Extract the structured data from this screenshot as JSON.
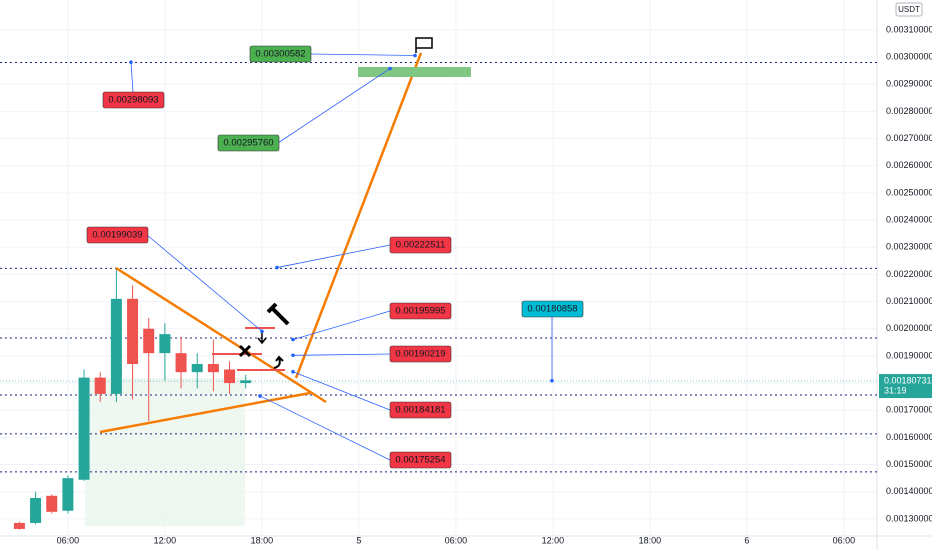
{
  "chart_data": {
    "type": "candlestick",
    "currency": "USDT",
    "xlim": [
      1.8,
      56.05
    ],
    "ylim": [
      0.001237,
      0.00321
    ],
    "xticks": [
      {
        "value": 6,
        "label": "06:00"
      },
      {
        "value": 12,
        "label": "12:00"
      },
      {
        "value": 18,
        "label": "18:00"
      },
      {
        "value": 24,
        "label": "5"
      },
      {
        "value": 30,
        "label": "06:00"
      },
      {
        "value": 36,
        "label": "12:00"
      },
      {
        "value": 42,
        "label": "18:00"
      },
      {
        "value": 48,
        "label": "6"
      },
      {
        "value": 54,
        "label": "06:00"
      }
    ],
    "yticks": [
      {
        "value": 0.0013,
        "label": "0.00130000"
      },
      {
        "value": 0.0014,
        "label": "0.00140000"
      },
      {
        "value": 0.0015,
        "label": "0.00150000"
      },
      {
        "value": 0.0016,
        "label": "0.00160000"
      },
      {
        "value": 0.0017,
        "label": "0.00170000"
      },
      {
        "value": 0.0018,
        "label": "0.00180000"
      },
      {
        "value": 0.0019,
        "label": "0.00190000"
      },
      {
        "value": 0.002,
        "label": "0.00200000"
      },
      {
        "value": 0.0021,
        "label": "0.00210000"
      },
      {
        "value": 0.0022,
        "label": "0.00220000"
      },
      {
        "value": 0.0023,
        "label": "0.00230000"
      },
      {
        "value": 0.0024,
        "label": "0.00240000"
      },
      {
        "value": 0.0025,
        "label": "0.00250000"
      },
      {
        "value": 0.0026,
        "label": "0.00260000"
      },
      {
        "value": 0.0027,
        "label": "0.00270000"
      },
      {
        "value": 0.0028,
        "label": "0.00280000"
      },
      {
        "value": 0.0029,
        "label": "0.00290000"
      },
      {
        "value": 0.003,
        "label": "0.00300000"
      },
      {
        "value": 0.0031,
        "label": "0.00310000"
      }
    ],
    "x": [
      3,
      4,
      5,
      6,
      7,
      8,
      9,
      10,
      11,
      12,
      13,
      14,
      15,
      16,
      17
    ],
    "open": [
      0.001285,
      0.001285,
      0.001385,
      0.00133,
      0.001444,
      0.00182,
      0.00176,
      0.00211,
      0.002,
      0.00191,
      0.00191,
      0.00184,
      0.00187,
      0.00185,
      0.0018
    ],
    "high": [
      0.00129,
      0.0014,
      0.00139,
      0.00146,
      0.00185,
      0.00184,
      0.00222,
      0.00216,
      0.00204,
      0.00202,
      0.00197,
      0.00191,
      0.00196,
      0.00188,
      0.00183
    ],
    "low": [
      0.00126,
      0.00128,
      0.00132,
      0.00132,
      0.00144,
      0.00173,
      0.00173,
      0.00174,
      0.00166,
      0.00181,
      0.00178,
      0.00178,
      0.00177,
      0.00176,
      0.00178
    ],
    "close": [
      0.001263,
      0.001377,
      0.001326,
      0.00145,
      0.00182,
      0.00176,
      0.00211,
      0.00187,
      0.00191,
      0.00198,
      0.00184,
      0.00187,
      0.00184,
      0.0018,
      0.00181
    ],
    "up_color": "#26a69a",
    "down_color": "#ef5350",
    "levels": [
      0.00298,
      0.002222,
      0.001966,
      0.001756,
      0.001613,
      0.001473
    ],
    "last_price": {
      "value": 0.00180731,
      "label": "0.00180731"
    },
    "countdown": "31:19",
    "annotations": [
      {
        "value": 0.00298093,
        "label": "0.00298093",
        "color": "#f23645"
      },
      {
        "value": 0.00300582,
        "label": "0.00300582",
        "color": "#4caf50"
      },
      {
        "value": 0.0029576,
        "label": "0.00295760",
        "color": "#4caf50"
      },
      {
        "value": 0.00199039,
        "label": "0.00199039",
        "color": "#f23645"
      },
      {
        "value": 0.00222511,
        "label": "0.00222511",
        "color": "#f23645"
      },
      {
        "value": 0.00195995,
        "label": "0.00195995",
        "color": "#f23645"
      },
      {
        "value": 0.00190219,
        "label": "0.00190219",
        "color": "#f23645"
      },
      {
        "value": 0.00184181,
        "label": "0.00184181",
        "color": "#f23645"
      },
      {
        "value": 0.00175254,
        "label": "0.00175254",
        "color": "#f23645"
      },
      {
        "value": 0.00180858,
        "label": "0.00180858",
        "color": "#00bcd4"
      }
    ]
  }
}
